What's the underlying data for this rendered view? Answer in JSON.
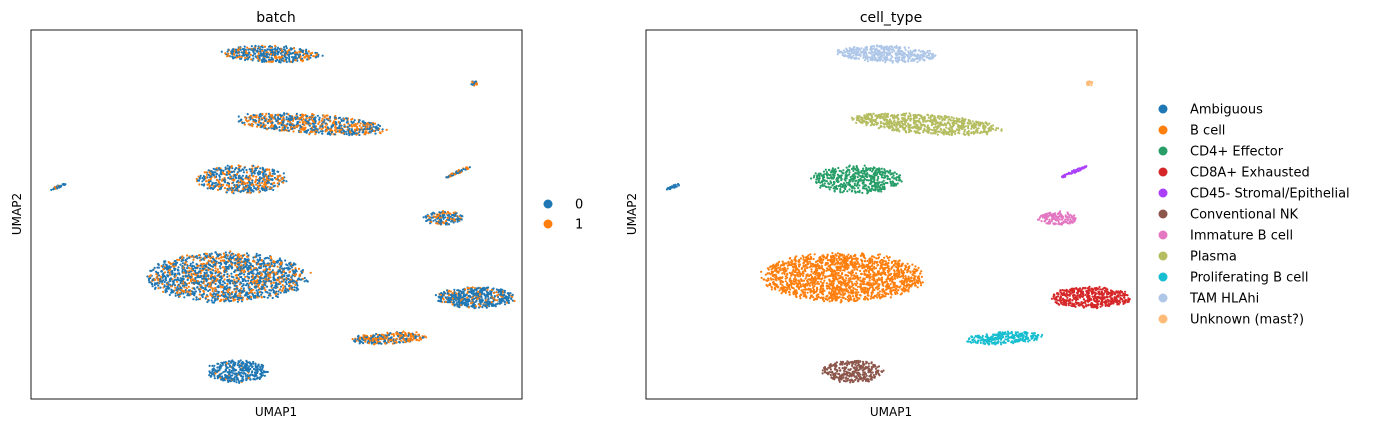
{
  "chart_data": [
    {
      "type": "scatter",
      "title": "batch",
      "xlabel": "UMAP1",
      "ylabel": "UMAP2",
      "xlim": [
        0,
        100
      ],
      "ylim": [
        0,
        100
      ],
      "grid": false,
      "ticks": false,
      "legend": {
        "placement": "right",
        "entries": [
          {
            "label": "0",
            "color": "#1f77b4"
          },
          {
            "label": "1",
            "color": "#ff7f0e"
          }
        ]
      },
      "clusters": [
        {
          "x": 49,
          "y": 93.5,
          "rx": 10,
          "ry": 2.2,
          "n": 450,
          "mix": 0.35,
          "tilt": -2
        },
        {
          "x": 57,
          "y": 74.5,
          "rx": 15,
          "ry": 2.6,
          "n": 700,
          "mix": 0.5,
          "tilt": -4
        },
        {
          "x": 43,
          "y": 59.5,
          "rx": 9,
          "ry": 3.7,
          "n": 520,
          "mix": 0.4
        },
        {
          "x": 40,
          "y": 33,
          "rx": 16,
          "ry": 6.5,
          "n": 1700,
          "mix": 0.3
        },
        {
          "x": 42,
          "y": 7.5,
          "rx": 6,
          "ry": 3,
          "n": 320,
          "mix": 0.05
        },
        {
          "x": 73,
          "y": 16.5,
          "rx": 7.5,
          "ry": 1.6,
          "n": 280,
          "mix": 0.5,
          "tilt": 3
        },
        {
          "x": 90.5,
          "y": 27.5,
          "rx": 8,
          "ry": 2.8,
          "n": 520,
          "mix": 0.2
        },
        {
          "x": 84,
          "y": 49,
          "rx": 4,
          "ry": 1.8,
          "n": 160,
          "mix": 0.4
        },
        {
          "x": 87,
          "y": 61.5,
          "rx": 2.8,
          "ry": 0.4,
          "n": 60,
          "mix": 0.6,
          "tilt": 24
        },
        {
          "x": 90.3,
          "y": 85.5,
          "rx": 0.7,
          "ry": 0.6,
          "n": 20,
          "mix": 0.5
        },
        {
          "x": 5.5,
          "y": 57.5,
          "rx": 1.7,
          "ry": 0.35,
          "n": 30,
          "mix": 0.3,
          "tilt": 20
        }
      ]
    },
    {
      "type": "scatter",
      "title": "cell_type",
      "xlabel": "UMAP1",
      "ylabel": "UMAP2",
      "xlim": [
        0,
        100
      ],
      "ylim": [
        0,
        100
      ],
      "grid": false,
      "ticks": false,
      "legend": {
        "placement": "right",
        "entries": [
          {
            "label": "Ambiguous",
            "color": "#1f77b4"
          },
          {
            "label": "B cell",
            "color": "#ff7f0e"
          },
          {
            "label": "CD4+ Effector",
            "color": "#279e68"
          },
          {
            "label": "CD8A+ Exhausted",
            "color": "#d62728"
          },
          {
            "label": "CD45- Stromal/Epithelial",
            "color": "#aa40fc"
          },
          {
            "label": "Conventional NK",
            "color": "#8c564b"
          },
          {
            "label": "Immature B cell",
            "color": "#e377c2"
          },
          {
            "label": "Plasma",
            "color": "#b5bd61"
          },
          {
            "label": "Proliferating B cell",
            "color": "#17becf"
          },
          {
            "label": "TAM HLAhi",
            "color": "#aec7e8"
          },
          {
            "label": "Unknown (mast?)",
            "color": "#ffbb78"
          }
        ]
      },
      "clusters": [
        {
          "cat": "TAM HLAhi",
          "x": 49,
          "y": 93.5,
          "rx": 10,
          "ry": 2.2,
          "n": 450,
          "tilt": -2
        },
        {
          "cat": "Plasma",
          "x": 57,
          "y": 74.5,
          "rx": 15,
          "ry": 2.6,
          "n": 700,
          "tilt": -4
        },
        {
          "cat": "CD4+ Effector",
          "x": 43,
          "y": 59.5,
          "rx": 9,
          "ry": 3.7,
          "n": 520
        },
        {
          "cat": "B cell",
          "x": 40,
          "y": 33,
          "rx": 16,
          "ry": 6.5,
          "n": 1700
        },
        {
          "cat": "Conventional NK",
          "x": 42,
          "y": 7.5,
          "rx": 6,
          "ry": 3,
          "n": 320
        },
        {
          "cat": "Proliferating B cell",
          "x": 73,
          "y": 16.5,
          "rx": 7.5,
          "ry": 1.6,
          "n": 280,
          "tilt": 3
        },
        {
          "cat": "CD8A+ Exhausted",
          "x": 90.5,
          "y": 27.5,
          "rx": 8,
          "ry": 2.8,
          "n": 520
        },
        {
          "cat": "Immature B cell",
          "x": 84,
          "y": 49,
          "rx": 4,
          "ry": 1.8,
          "n": 160
        },
        {
          "cat": "CD45- Stromal/Epithelial",
          "x": 87,
          "y": 61.5,
          "rx": 2.8,
          "ry": 0.4,
          "n": 60,
          "tilt": 24
        },
        {
          "cat": "Unknown (mast?)",
          "x": 90.3,
          "y": 85.5,
          "rx": 0.7,
          "ry": 0.6,
          "n": 20
        },
        {
          "cat": "Ambiguous",
          "x": 5.5,
          "y": 57.5,
          "rx": 1.7,
          "ry": 0.35,
          "n": 30,
          "tilt": 20
        }
      ]
    }
  ]
}
